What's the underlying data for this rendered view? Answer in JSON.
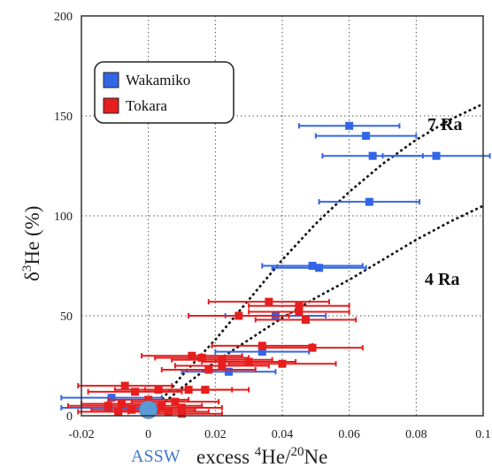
{
  "chart_data": {
    "type": "scatter",
    "xlim": [
      -0.02,
      0.1
    ],
    "ylim": [
      0,
      200
    ],
    "x_ticks": [
      "-0.02",
      "0",
      "0.02",
      "0.04",
      "0.06",
      "0.08",
      "0.1"
    ],
    "y_ticks": [
      "0",
      "50",
      "100",
      "150",
      "200"
    ],
    "grid": true,
    "xlabel": {
      "prefix": "excess ",
      "sup1": "4",
      "mid": "He/",
      "sup2": "20",
      "suffix": "Ne"
    },
    "ylabel": {
      "delta": "δ",
      "sup": "3",
      "rest": "He (%)"
    },
    "legend_position": "top-left",
    "colors": {
      "Wakamiko": "#3366e6",
      "Tokara": "#e61e1e",
      "ASSW": "#5b9bd5"
    },
    "series": [
      {
        "name": "Wakamiko",
        "points": [
          {
            "x": 0.06,
            "y": 145,
            "xerr": 0.015
          },
          {
            "x": 0.065,
            "y": 140,
            "xerr": 0.015
          },
          {
            "x": 0.067,
            "y": 130,
            "xerr": 0.015
          },
          {
            "x": 0.086,
            "y": 130,
            "xerr": 0.016
          },
          {
            "x": 0.066,
            "y": 107,
            "xerr": 0.015
          },
          {
            "x": 0.049,
            "y": 75,
            "xerr": 0.015
          },
          {
            "x": 0.051,
            "y": 74,
            "xerr": 0.014
          },
          {
            "x": 0.038,
            "y": 50,
            "xerr": 0.015
          },
          {
            "x": 0.034,
            "y": 32,
            "xerr": 0.014
          },
          {
            "x": 0.024,
            "y": 22,
            "xerr": 0.014
          },
          {
            "x": -0.011,
            "y": 9,
            "xerr": 0.015
          },
          {
            "x": -0.012,
            "y": 4,
            "xerr": 0.014
          }
        ]
      },
      {
        "name": "Tokara",
        "points": [
          {
            "x": 0.036,
            "y": 57,
            "xerr": 0.018
          },
          {
            "x": 0.045,
            "y": 55,
            "xerr": 0.015
          },
          {
            "x": 0.045,
            "y": 52,
            "xerr": 0.015
          },
          {
            "x": 0.027,
            "y": 50,
            "xerr": 0.015
          },
          {
            "x": 0.047,
            "y": 48,
            "xerr": 0.015
          },
          {
            "x": 0.034,
            "y": 35,
            "xerr": 0.015
          },
          {
            "x": 0.049,
            "y": 34,
            "xerr": 0.015
          },
          {
            "x": 0.013,
            "y": 30,
            "xerr": 0.015
          },
          {
            "x": 0.016,
            "y": 29,
            "xerr": 0.014
          },
          {
            "x": 0.022,
            "y": 28,
            "xerr": 0.015
          },
          {
            "x": 0.03,
            "y": 27,
            "xerr": 0.014
          },
          {
            "x": 0.04,
            "y": 26,
            "xerr": 0.016
          },
          {
            "x": 0.022,
            "y": 25,
            "xerr": 0.014
          },
          {
            "x": 0.018,
            "y": 23,
            "xerr": 0.014
          },
          {
            "x": -0.007,
            "y": 15,
            "xerr": 0.014
          },
          {
            "x": 0.003,
            "y": 13,
            "xerr": 0.013
          },
          {
            "x": 0.012,
            "y": 13,
            "xerr": 0.013
          },
          {
            "x": 0.017,
            "y": 13,
            "xerr": 0.013
          },
          {
            "x": -0.004,
            "y": 12,
            "xerr": 0.014
          },
          {
            "x": 0.0,
            "y": 8,
            "xerr": 0.012
          },
          {
            "x": 0.008,
            "y": 7,
            "xerr": 0.013
          },
          {
            "x": -0.008,
            "y": 6,
            "xerr": 0.012
          },
          {
            "x": 0.004,
            "y": 5,
            "xerr": 0.012
          },
          {
            "x": -0.012,
            "y": 5,
            "xerr": 0.012
          },
          {
            "x": 0.01,
            "y": 4,
            "xerr": 0.012
          },
          {
            "x": 0.002,
            "y": 3,
            "xerr": 0.012
          },
          {
            "x": -0.005,
            "y": 3,
            "xerr": 0.012
          },
          {
            "x": 0.006,
            "y": 2,
            "xerr": 0.012
          },
          {
            "x": -0.009,
            "y": 2,
            "xerr": 0.012
          },
          {
            "x": 0.01,
            "y": 1,
            "xerr": 0.012
          }
        ]
      }
    ],
    "reference": {
      "label": "ASSW",
      "x": 0.0,
      "y": 3
    },
    "curves": [
      {
        "label": "7 Ra",
        "points": [
          [
            0.0,
            0
          ],
          [
            0.01,
            20
          ],
          [
            0.02,
            38
          ],
          [
            0.03,
            58
          ],
          [
            0.04,
            78
          ],
          [
            0.05,
            96
          ],
          [
            0.06,
            112
          ],
          [
            0.07,
            126
          ],
          [
            0.08,
            138
          ],
          [
            0.09,
            148
          ],
          [
            0.1,
            156
          ]
        ]
      },
      {
        "label": "4 Ra",
        "points": [
          [
            0.0,
            0
          ],
          [
            0.01,
            14
          ],
          [
            0.02,
            27
          ],
          [
            0.03,
            38
          ],
          [
            0.04,
            49
          ],
          [
            0.05,
            59
          ],
          [
            0.06,
            68
          ],
          [
            0.07,
            78
          ],
          [
            0.08,
            88
          ],
          [
            0.09,
            97
          ],
          [
            0.1,
            105
          ]
        ]
      }
    ]
  }
}
